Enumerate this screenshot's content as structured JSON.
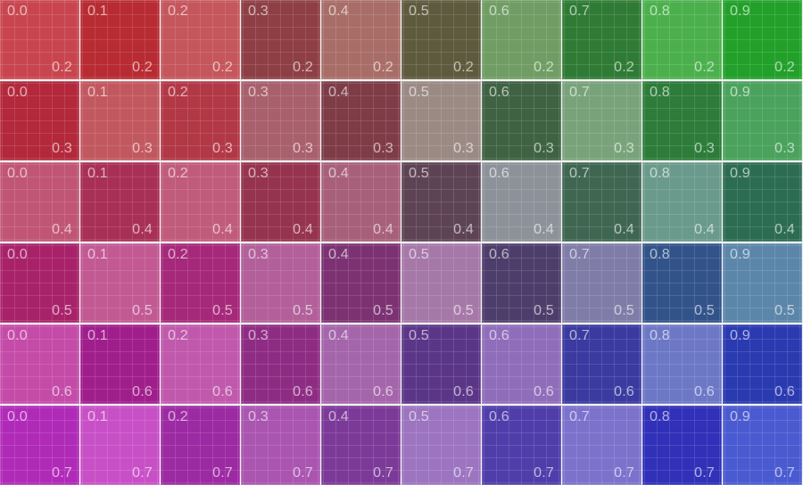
{
  "rows": [
    {
      "row_label": "0.2",
      "cells": [
        {
          "label": "0.0",
          "color": "#c8454f"
        },
        {
          "label": "0.1",
          "color": "#b82b32"
        },
        {
          "label": "0.2",
          "color": "#c4565c"
        },
        {
          "label": "0.3",
          "color": "#8d3f45"
        },
        {
          "label": "0.4",
          "color": "#a86d67"
        },
        {
          "label": "0.5",
          "color": "#5d5a3e"
        },
        {
          "label": "0.6",
          "color": "#6f9d63"
        },
        {
          "label": "0.7",
          "color": "#2f7b35"
        },
        {
          "label": "0.8",
          "color": "#4bb04c"
        },
        {
          "label": "0.9",
          "color": "#22a02a"
        }
      ]
    },
    {
      "row_label": "0.3",
      "cells": [
        {
          "label": "0.0",
          "color": "#b3283b"
        },
        {
          "label": "0.1",
          "color": "#c2585f"
        },
        {
          "label": "0.2",
          "color": "#b23846"
        },
        {
          "label": "0.3",
          "color": "#a8606c"
        },
        {
          "label": "0.4",
          "color": "#7e3c47"
        },
        {
          "label": "0.5",
          "color": "#9b8a84"
        },
        {
          "label": "0.6",
          "color": "#3f6243"
        },
        {
          "label": "0.7",
          "color": "#78a37a"
        },
        {
          "label": "0.8",
          "color": "#2d7c3a"
        },
        {
          "label": "0.9",
          "color": "#4aa25c"
        }
      ]
    },
    {
      "row_label": "0.4",
      "cells": [
        {
          "label": "0.0",
          "color": "#c05576"
        },
        {
          "label": "0.1",
          "color": "#a82f55"
        },
        {
          "label": "0.2",
          "color": "#c05b7b"
        },
        {
          "label": "0.3",
          "color": "#96334f"
        },
        {
          "label": "0.4",
          "color": "#a8607a"
        },
        {
          "label": "0.5",
          "color": "#5d4354"
        },
        {
          "label": "0.6",
          "color": "#8d929a"
        },
        {
          "label": "0.7",
          "color": "#3f6651"
        },
        {
          "label": "0.8",
          "color": "#6a9a8b"
        },
        {
          "label": "0.9",
          "color": "#2c6c53"
        }
      ]
    },
    {
      "row_label": "0.5",
      "cells": [
        {
          "label": "0.0",
          "color": "#a8226a"
        },
        {
          "label": "0.1",
          "color": "#c25993"
        },
        {
          "label": "0.2",
          "color": "#a6287a"
        },
        {
          "label": "0.3",
          "color": "#b25f9a"
        },
        {
          "label": "0.4",
          "color": "#7c3272"
        },
        {
          "label": "0.5",
          "color": "#a678a8"
        },
        {
          "label": "0.6",
          "color": "#4d3d6b"
        },
        {
          "label": "0.7",
          "color": "#7f7ca8"
        },
        {
          "label": "0.8",
          "color": "#32538a"
        },
        {
          "label": "0.9",
          "color": "#5b86aa"
        }
      ]
    },
    {
      "row_label": "0.6",
      "cells": [
        {
          "label": "0.0",
          "color": "#c44ba8"
        },
        {
          "label": "0.1",
          "color": "#a01e8c"
        },
        {
          "label": "0.2",
          "color": "#c058ac"
        },
        {
          "label": "0.3",
          "color": "#8e2c84"
        },
        {
          "label": "0.4",
          "color": "#a465aa"
        },
        {
          "label": "0.5",
          "color": "#5b3688"
        },
        {
          "label": "0.6",
          "color": "#8f6dba"
        },
        {
          "label": "0.7",
          "color": "#3a3aa0"
        },
        {
          "label": "0.8",
          "color": "#6c78c6"
        },
        {
          "label": "0.9",
          "color": "#2a3ab0"
        }
      ]
    },
    {
      "row_label": "0.7",
      "cells": [
        {
          "label": "0.0",
          "color": "#b02ab8"
        },
        {
          "label": "0.1",
          "color": "#c850c6"
        },
        {
          "label": "0.2",
          "color": "#9c2aa2"
        },
        {
          "label": "0.3",
          "color": "#aa55b0"
        },
        {
          "label": "0.4",
          "color": "#7c3a98"
        },
        {
          "label": "0.5",
          "color": "#9c74c0"
        },
        {
          "label": "0.6",
          "color": "#4f3eaa"
        },
        {
          "label": "0.7",
          "color": "#7c72cc"
        },
        {
          "label": "0.8",
          "color": "#3030b8"
        },
        {
          "label": "0.9",
          "color": "#4a5ad0"
        }
      ]
    }
  ]
}
